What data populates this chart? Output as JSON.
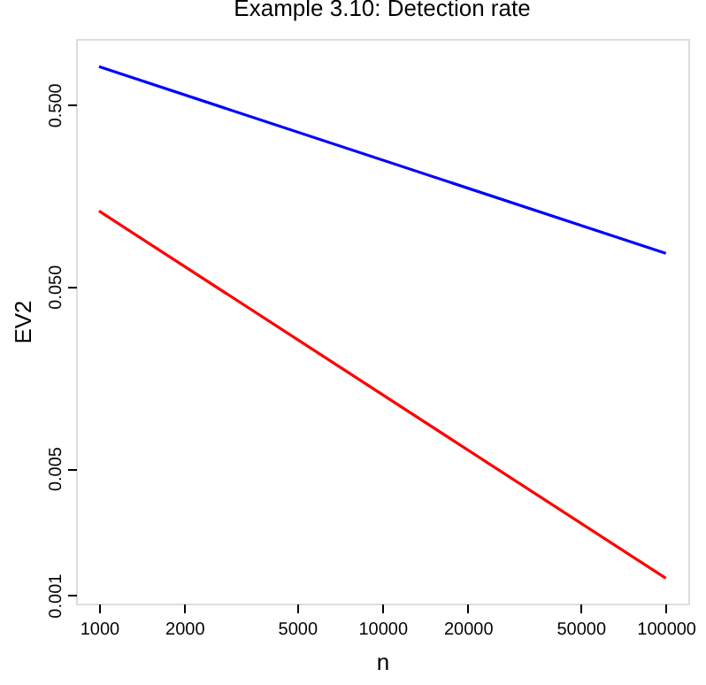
{
  "chart_data": {
    "type": "line",
    "title": "Example 3.10: Detection rate",
    "xlabel": "n",
    "ylabel": "EV2",
    "x": [
      1000,
      100000
    ],
    "series": [
      {
        "color": "#0000ff",
        "values": [
          0.81,
          0.076
        ]
      },
      {
        "color": "#ff0000",
        "values": [
          0.13,
          0.00124
        ]
      }
    ],
    "log": "xy",
    "xlim": [
      830,
      120000
    ],
    "ylim": [
      0.0009,
      1.15
    ],
    "xticks": [
      1000,
      2000,
      5000,
      10000,
      20000,
      50000,
      100000
    ],
    "yticks": [
      {
        "value": 0.001,
        "label": "0.001"
      },
      {
        "value": 0.005,
        "label": "0.005"
      },
      {
        "value": 0.05,
        "label": "0.050"
      },
      {
        "value": 0.5,
        "label": "0.500"
      }
    ],
    "grid": false,
    "marker": "none",
    "line_style": "solid"
  }
}
